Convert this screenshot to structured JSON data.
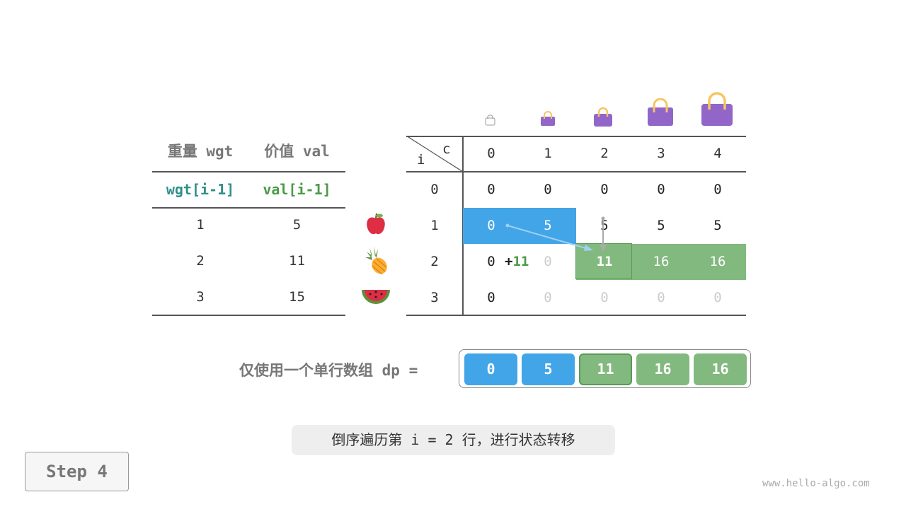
{
  "items_table": {
    "headers": [
      "重量 wgt",
      "价值 val"
    ],
    "subheaders": [
      "wgt[i-1]",
      "val[i-1]"
    ],
    "rows": [
      {
        "wgt": "1",
        "val": "5",
        "item": "apple-icon"
      },
      {
        "wgt": "2",
        "val": "11",
        "item": "pineapple-icon"
      },
      {
        "wgt": "3",
        "val": "15",
        "item": "watermelon-icon"
      }
    ]
  },
  "dp_table": {
    "corner_i": "i",
    "corner_c": "c",
    "col_headers": [
      "0",
      "1",
      "2",
      "3",
      "4"
    ],
    "row_headers": [
      "0",
      "1",
      "2",
      "3"
    ],
    "rows": [
      [
        "0",
        "0",
        "0",
        "0",
        "0"
      ],
      [
        "0",
        "5",
        "5",
        "5",
        "5"
      ],
      [
        "0",
        "0",
        "11",
        "16",
        "16"
      ],
      [
        "0",
        "0",
        "0",
        "0",
        "0"
      ]
    ],
    "annotation": {
      "plus": "+",
      "value": "11"
    },
    "capacity_icons": "bag-icon"
  },
  "dp_array": {
    "label": "仅使用一个单行数组 dp =",
    "values": [
      "0",
      "5",
      "11",
      "16",
      "16"
    ]
  },
  "caption": "倒序遍历第 i = 2 行，进行状态转移",
  "step_button": "Step 4",
  "watermark": "www.hello-algo.com",
  "colors": {
    "blue": "#42a5e8",
    "green": "#82b97e",
    "green_border": "#5a9a56",
    "teal": "#2f8f8a",
    "text_green": "#4a9a46",
    "bag": "#9266c9",
    "handle": "#f7c560"
  }
}
